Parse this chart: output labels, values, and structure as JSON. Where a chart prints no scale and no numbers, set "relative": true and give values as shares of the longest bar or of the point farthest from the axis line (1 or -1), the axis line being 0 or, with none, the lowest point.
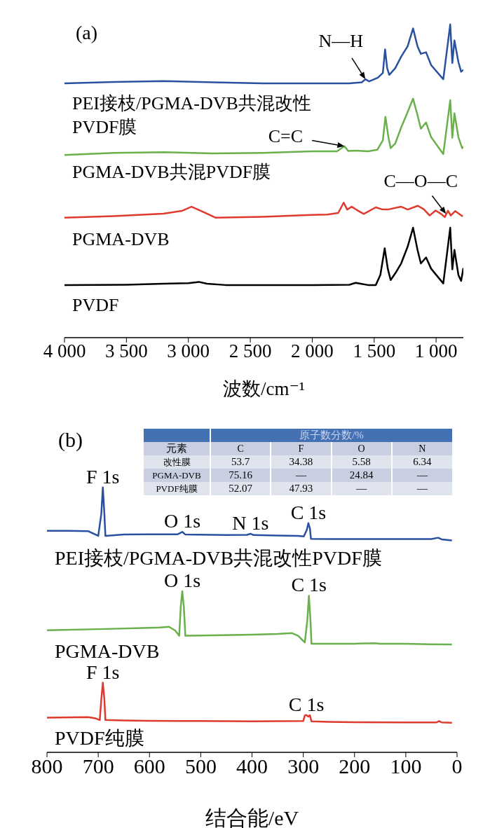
{
  "chart_data": [
    {
      "type": "line",
      "title": "(a)",
      "xlabel": "波数/cm⁻¹",
      "relative": true,
      "marker": "none",
      "xlim": [
        4000,
        780
      ],
      "xticks": [
        {
          "value": 4000,
          "label": "4 000"
        },
        {
          "value": 3500,
          "label": "3 500"
        },
        {
          "value": 3000,
          "label": "3 000"
        },
        {
          "value": 2500,
          "label": "2 500"
        },
        {
          "value": 2000,
          "label": "2 000"
        },
        {
          "value": 1500,
          "label": "1 500"
        },
        {
          "value": 1000,
          "label": "1 000"
        }
      ],
      "series": [
        {
          "name": "PEI接枝/PGMA-DVB共混改性PVDF膜",
          "color": "#2a50a0",
          "x": [
            4000,
            3600,
            3200,
            2800,
            2400,
            2000,
            1700,
            1600,
            1571,
            1540,
            1470,
            1430,
            1412,
            1395,
            1378,
            1330,
            1282,
            1230,
            1186,
            1150,
            1123,
            1081,
            1040,
            942,
            886,
            869,
            852,
            820,
            798,
            780
          ],
          "values": [
            0.812,
            0.816,
            0.819,
            0.815,
            0.812,
            0.812,
            0.812,
            0.815,
            0.825,
            0.818,
            0.83,
            0.845,
            0.92,
            0.86,
            0.839,
            0.86,
            0.897,
            0.93,
            0.987,
            0.93,
            0.906,
            0.911,
            0.87,
            0.825,
            1.0,
            0.877,
            0.949,
            0.88,
            0.849,
            0.855
          ]
        },
        {
          "name": "PGMA-DVB共混PVDF膜",
          "color": "#6ab04c",
          "x": [
            4000,
            3600,
            3200,
            2800,
            2400,
            2000,
            1800,
            1740,
            1710,
            1650,
            1550,
            1474,
            1430,
            1409,
            1385,
            1367,
            1330,
            1282,
            1230,
            1186,
            1150,
            1123,
            1081,
            1040,
            942,
            886,
            869,
            852,
            820,
            790,
            780
          ],
          "values": [
            0.583,
            0.59,
            0.592,
            0.588,
            0.59,
            0.595,
            0.595,
            0.611,
            0.596,
            0.597,
            0.595,
            0.6,
            0.63,
            0.705,
            0.64,
            0.605,
            0.62,
            0.671,
            0.72,
            0.763,
            0.71,
            0.667,
            0.687,
            0.64,
            0.586,
            0.758,
            0.638,
            0.716,
            0.64,
            0.605,
            0.61
          ]
        },
        {
          "name": "PGMA-DVB",
          "color": "#e03a2f",
          "x": [
            4000,
            3600,
            3200,
            3050,
            2975,
            2900,
            2782,
            2400,
            2000,
            1877,
            1790,
            1746,
            1718,
            1681,
            1630,
            1584,
            1487,
            1440,
            1390,
            1282,
            1229,
            1148,
            1100,
            1052,
            1004,
            960,
            930,
            904,
            882,
            846,
            785
          ],
          "values": [
            0.383,
            0.388,
            0.396,
            0.405,
            0.418,
            0.405,
            0.383,
            0.386,
            0.392,
            0.393,
            0.398,
            0.431,
            0.409,
            0.418,
            0.405,
            0.395,
            0.416,
            0.41,
            0.409,
            0.418,
            0.409,
            0.421,
            0.41,
            0.39,
            0.406,
            0.395,
            0.385,
            0.405,
            0.39,
            0.404,
            0.387
          ]
        },
        {
          "name": "PVDF",
          "color": "#000000",
          "x": [
            4000,
            3500,
            3200,
            3000,
            2915,
            2850,
            2700,
            2000,
            1700,
            1650,
            1550,
            1487,
            1450,
            1415,
            1390,
            1367,
            1330,
            1282,
            1230,
            1186,
            1150,
            1123,
            1081,
            1040,
            942,
            886,
            869,
            852,
            820,
            798,
            780
          ],
          "values": [
            0.168,
            0.169,
            0.172,
            0.174,
            0.178,
            0.172,
            0.168,
            0.168,
            0.169,
            0.175,
            0.168,
            0.168,
            0.2,
            0.285,
            0.22,
            0.184,
            0.205,
            0.237,
            0.29,
            0.351,
            0.28,
            0.237,
            0.256,
            0.22,
            0.173,
            0.351,
            0.218,
            0.28,
            0.2,
            0.181,
            0.222
          ]
        }
      ],
      "annotations": [
        {
          "text": "N—H",
          "x": 1571,
          "y": 0.825
        },
        {
          "text": "C=C",
          "x": 1740,
          "y": 0.611
        },
        {
          "text": "C—O—C",
          "x": 920,
          "y": 0.395
        }
      ]
    },
    {
      "type": "line",
      "title": "(b)",
      "xlabel": "结合能/eV",
      "relative": true,
      "marker": "none",
      "xlim": [
        800,
        0
      ],
      "xticks": [
        800,
        700,
        600,
        500,
        400,
        300,
        200,
        100,
        0
      ],
      "series": [
        {
          "name": "PEI接枝/PGMA-DVB共混改性PVDF膜",
          "color": "#2a50a0",
          "x": [
            800,
            760,
            720,
            700,
            694,
            691,
            688,
            686,
            650,
            600,
            545,
            536,
            530,
            450,
            410,
            403,
            397,
            350,
            310,
            299,
            293,
            290,
            287,
            285,
            250,
            200,
            150,
            100,
            50,
            37,
            30,
            10
          ],
          "values": [
            0.836,
            0.836,
            0.835,
            0.817,
            0.9,
            1.0,
            0.9,
            0.817,
            0.822,
            0.823,
            0.823,
            0.832,
            0.822,
            0.82,
            0.821,
            0.825,
            0.82,
            0.818,
            0.817,
            0.815,
            0.84,
            0.865,
            0.845,
            0.806,
            0.805,
            0.805,
            0.805,
            0.805,
            0.805,
            0.81,
            0.804,
            0.8
          ]
        },
        {
          "name": "PGMA-DVB",
          "color": "#6ab04c",
          "x": [
            800,
            700,
            600,
            580,
            562,
            550,
            542,
            539,
            536,
            533,
            530,
            500,
            400,
            350,
            322,
            310,
            297,
            292,
            289,
            286,
            284,
            250,
            200,
            160,
            150,
            100,
            50,
            10
          ],
          "values": [
            0.461,
            0.465,
            0.47,
            0.471,
            0.474,
            0.46,
            0.44,
            0.55,
            0.608,
            0.55,
            0.44,
            0.441,
            0.444,
            0.447,
            0.45,
            0.44,
            0.415,
            0.5,
            0.591,
            0.5,
            0.41,
            0.41,
            0.41,
            0.412,
            0.41,
            0.41,
            0.408,
            0.407
          ]
        },
        {
          "name": "PVDF纯膜",
          "color": "#e03a2f",
          "x": [
            800,
            750,
            720,
            705,
            697,
            694,
            691,
            688,
            686,
            650,
            600,
            500,
            400,
            300,
            297,
            294,
            290,
            287,
            284,
            250,
            200,
            100,
            40,
            35,
            30,
            10
          ],
          "values": [
            0.131,
            0.132,
            0.133,
            0.128,
            0.122,
            0.2,
            0.263,
            0.2,
            0.122,
            0.12,
            0.119,
            0.118,
            0.117,
            0.118,
            0.139,
            0.141,
            0.135,
            0.14,
            0.117,
            0.115,
            0.114,
            0.113,
            0.113,
            0.118,
            0.113,
            0.112
          ]
        }
      ],
      "annotations": [
        {
          "text": "F 1s",
          "x": 691,
          "y": 1.0
        },
        {
          "text": "O 1s",
          "x": 536,
          "y": 0.832
        },
        {
          "text": "N 1s",
          "x": 403,
          "y": 0.825
        },
        {
          "text": "C 1s",
          "x": 290,
          "y": 0.865
        },
        {
          "text": "O 1s",
          "x": 536,
          "y": 0.608
        },
        {
          "text": "C 1s",
          "x": 289,
          "y": 0.591
        },
        {
          "text": "F 1s",
          "x": 691,
          "y": 0.263
        },
        {
          "text": "C 1s",
          "x": 294,
          "y": 0.141
        }
      ]
    },
    {
      "type": "other",
      "title": "原子数分数/%",
      "annotations": [
        "元素"
      ],
      "categories": [
        "C",
        "F",
        "O",
        "N"
      ],
      "y_categories": [
        "改性膜",
        "PGMA-DVB",
        "PVDF纯膜"
      ],
      "cell_labels": [
        [
          "53.7",
          "34.38",
          "5.58",
          "6.34"
        ],
        [
          "75.16",
          "—",
          "24.84",
          "—"
        ],
        [
          "52.07",
          "47.93",
          "—",
          "—"
        ]
      ]
    }
  ]
}
